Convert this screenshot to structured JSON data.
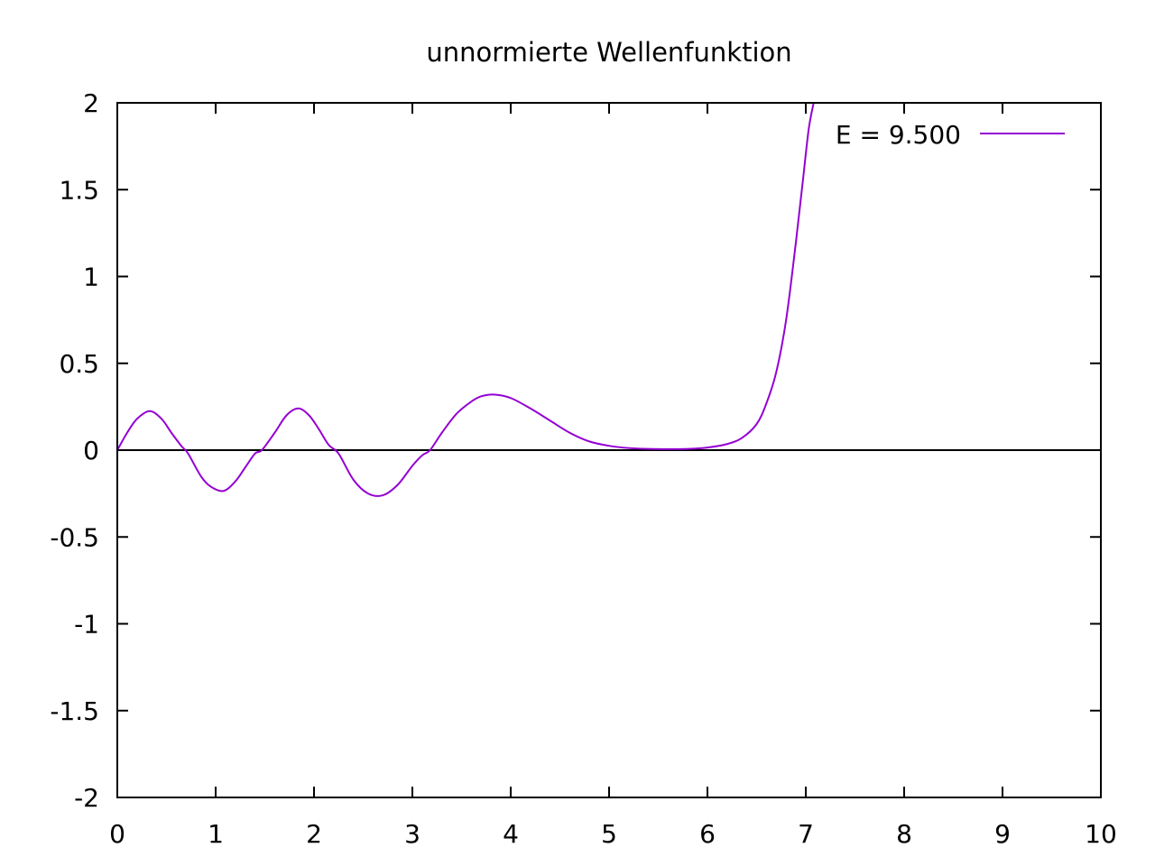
{
  "chart_data": {
    "type": "line",
    "title": "unnormierte Wellenfunktion",
    "xlabel": "",
    "ylabel": "",
    "xlim": [
      0,
      10
    ],
    "ylim": [
      -2,
      2
    ],
    "xticks": [
      "0",
      "1",
      "2",
      "3",
      "4",
      "5",
      "6",
      "7",
      "8",
      "9",
      "10"
    ],
    "xtick_values": [
      0,
      1,
      2,
      3,
      4,
      5,
      6,
      7,
      8,
      9,
      10
    ],
    "yticks": [
      "-2",
      "-1.5",
      "-1",
      "-0.5",
      "0",
      "0.5",
      "1",
      "1.5",
      "2"
    ],
    "ytick_values": [
      -2,
      -1.5,
      -1,
      -0.5,
      0,
      0.5,
      1,
      1.5,
      2
    ],
    "zero_line": true,
    "grid": false,
    "legend_position": "top-right",
    "series": [
      {
        "name": "E = 9.500",
        "color": "#9400d3",
        "x": [
          0,
          0.1,
          0.2,
          0.33,
          0.45,
          0.55,
          0.65,
          0.72,
          0.85,
          0.95,
          1.08,
          1.2,
          1.3,
          1.4,
          1.47,
          1.6,
          1.72,
          1.84,
          1.95,
          2.05,
          2.15,
          2.25,
          2.4,
          2.55,
          2.7,
          2.85,
          3.0,
          3.1,
          3.18,
          3.3,
          3.45,
          3.6,
          3.7,
          3.83,
          4.0,
          4.2,
          4.4,
          4.6,
          4.8,
          5.0,
          5.2,
          5.4,
          5.6,
          5.8,
          6.0,
          6.2,
          6.35,
          6.5,
          6.6,
          6.7,
          6.8,
          6.9,
          6.97,
          7.03,
          7.08
        ],
        "y": [
          0,
          0.1,
          0.18,
          0.225,
          0.18,
          0.1,
          0.025,
          -0.02,
          -0.15,
          -0.21,
          -0.235,
          -0.18,
          -0.1,
          -0.02,
          0.0,
          0.1,
          0.2,
          0.24,
          0.2,
          0.12,
          0.03,
          -0.02,
          -0.17,
          -0.25,
          -0.26,
          -0.2,
          -0.09,
          -0.03,
          0.0,
          0.1,
          0.21,
          0.28,
          0.31,
          0.32,
          0.3,
          0.24,
          0.17,
          0.1,
          0.05,
          0.025,
          0.012,
          0.007,
          0.006,
          0.007,
          0.015,
          0.035,
          0.07,
          0.15,
          0.27,
          0.45,
          0.75,
          1.2,
          1.55,
          1.85,
          2.0
        ]
      }
    ]
  }
}
